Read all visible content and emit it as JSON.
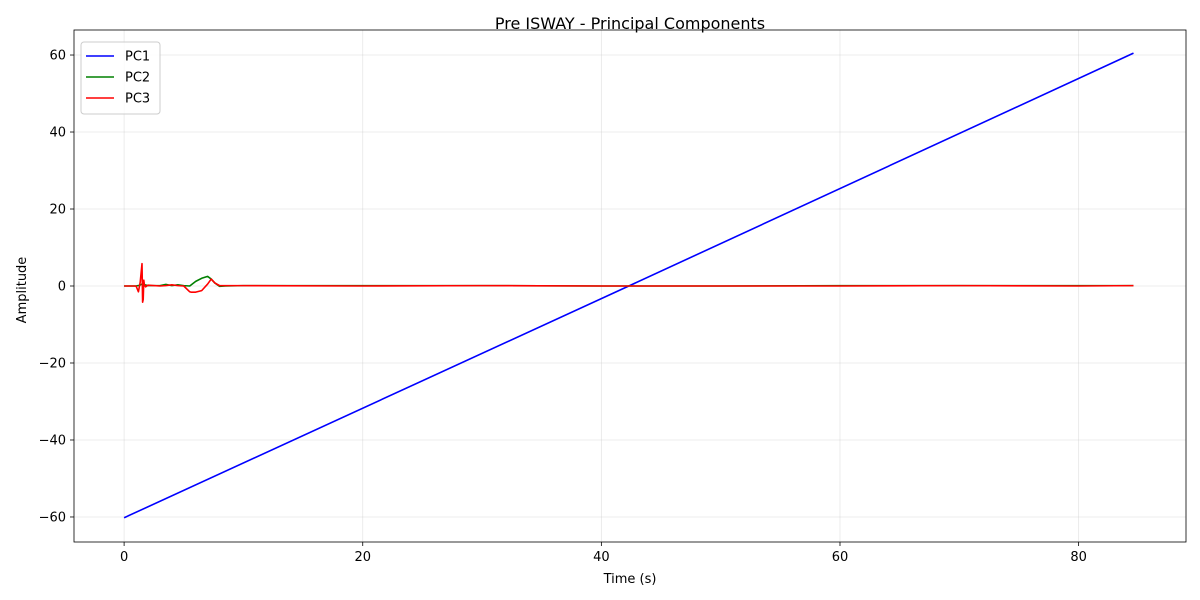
{
  "chart_data": {
    "type": "line",
    "title": "Pre ISWAY - Principal Components",
    "xlabel": "Time (s)",
    "ylabel": "Amplitude",
    "xlim": [
      -4.2,
      89.0
    ],
    "ylim": [
      -66.5,
      66.5
    ],
    "xticks": [
      0,
      20,
      40,
      60,
      80
    ],
    "yticks": [
      -60,
      -40,
      -20,
      0,
      20,
      40,
      60
    ],
    "xtick_labels": [
      "0",
      "20",
      "40",
      "60",
      "80"
    ],
    "ytick_labels": [
      "−60",
      "−40",
      "−20",
      "0",
      "20",
      "40",
      "60"
    ],
    "grid": true,
    "legend_position": "top-left",
    "series": [
      {
        "name": "PC1",
        "color": "#0000ff",
        "x": [
          0,
          42.3,
          84.6
        ],
        "y": [
          -60.2,
          0,
          60.5
        ]
      },
      {
        "name": "PC2",
        "color": "#008000",
        "x": [
          0,
          1.0,
          1.3,
          1.5,
          2.0,
          3.0,
          3.5,
          4.0,
          4.5,
          5.0,
          5.5,
          6.0,
          6.5,
          7.0,
          7.3,
          7.6,
          8.0,
          8.5,
          10,
          20,
          30,
          40,
          50,
          60,
          70,
          80,
          84.6
        ],
        "y": [
          0,
          0,
          0.2,
          0.5,
          0.1,
          0.1,
          0.4,
          0.1,
          0.3,
          0.1,
          0.0,
          1.2,
          2.0,
          2.5,
          1.8,
          0.8,
          -0.1,
          0.0,
          0.1,
          0.1,
          0.1,
          0.0,
          0.0,
          0.1,
          0.1,
          0.1,
          0.1
        ]
      },
      {
        "name": "PC3",
        "color": "#ff0000",
        "x": [
          0,
          1.0,
          1.2,
          1.35,
          1.5,
          1.55,
          1.6,
          1.65,
          1.7,
          1.8,
          2.0,
          3.0,
          3.5,
          4.0,
          4.5,
          5.0,
          5.5,
          5.6,
          6.0,
          6.5,
          7.0,
          7.3,
          7.6,
          8.0,
          10,
          20,
          30,
          40,
          50,
          60,
          70,
          80,
          84.6
        ],
        "y": [
          0,
          0,
          -1.5,
          1.0,
          5.8,
          -4.2,
          -3.5,
          1.5,
          0.3,
          -0.2,
          0.2,
          0.0,
          0.1,
          0.3,
          0.1,
          0.0,
          -1.5,
          -1.6,
          -1.6,
          -1.2,
          0.5,
          1.8,
          0.8,
          0.1,
          0.1,
          0.0,
          0.1,
          0.0,
          0.0,
          0.0,
          0.1,
          0.0,
          0.1
        ]
      }
    ]
  }
}
